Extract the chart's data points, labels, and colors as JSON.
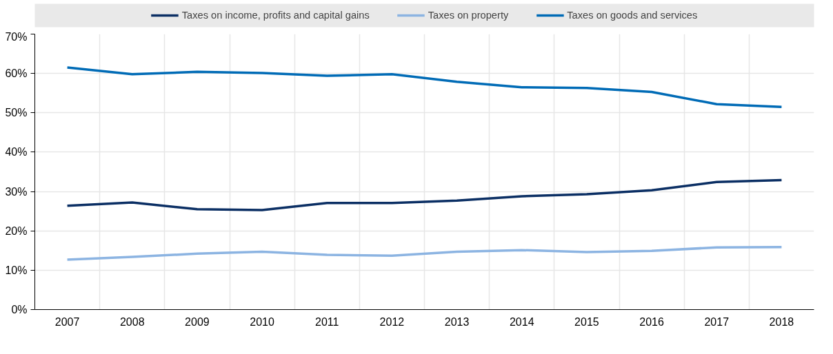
{
  "chart_data": {
    "type": "line",
    "categories": [
      "2007",
      "2008",
      "2009",
      "2010",
      "2011",
      "2012",
      "2013",
      "2014",
      "2015",
      "2016",
      "2017",
      "2018"
    ],
    "series": [
      {
        "name": "Taxes on income, profits and capital gains",
        "color": "#0b2f64",
        "values": [
          26.4,
          27.2,
          25.5,
          25.3,
          27.1,
          27.1,
          27.7,
          28.8,
          29.3,
          30.3,
          32.4,
          32.9
        ]
      },
      {
        "name": "Taxes on property",
        "color": "#8cb4e2",
        "values": [
          12.7,
          13.4,
          14.2,
          14.7,
          13.9,
          13.7,
          14.7,
          15.1,
          14.6,
          14.9,
          15.8,
          15.9
        ]
      },
      {
        "name": "Taxes on goods and services",
        "color": "#006bb6",
        "values": [
          61.5,
          59.8,
          60.4,
          60.1,
          59.4,
          59.8,
          57.9,
          56.5,
          56.3,
          55.3,
          52.2,
          51.5
        ]
      }
    ],
    "ylim": [
      0,
      70
    ],
    "yticks": [
      {
        "value": 0,
        "label": "0%"
      },
      {
        "value": 10,
        "label": "10%"
      },
      {
        "value": 20,
        "label": "20%"
      },
      {
        "value": 30,
        "label": "30%"
      },
      {
        "value": 40,
        "label": "40%"
      },
      {
        "value": 50,
        "label": "50%"
      },
      {
        "value": 60,
        "label": "60%"
      },
      {
        "value": 70,
        "label": "70%"
      }
    ],
    "grid": true,
    "legend": "top",
    "marker": "none",
    "line_style": "solid"
  }
}
